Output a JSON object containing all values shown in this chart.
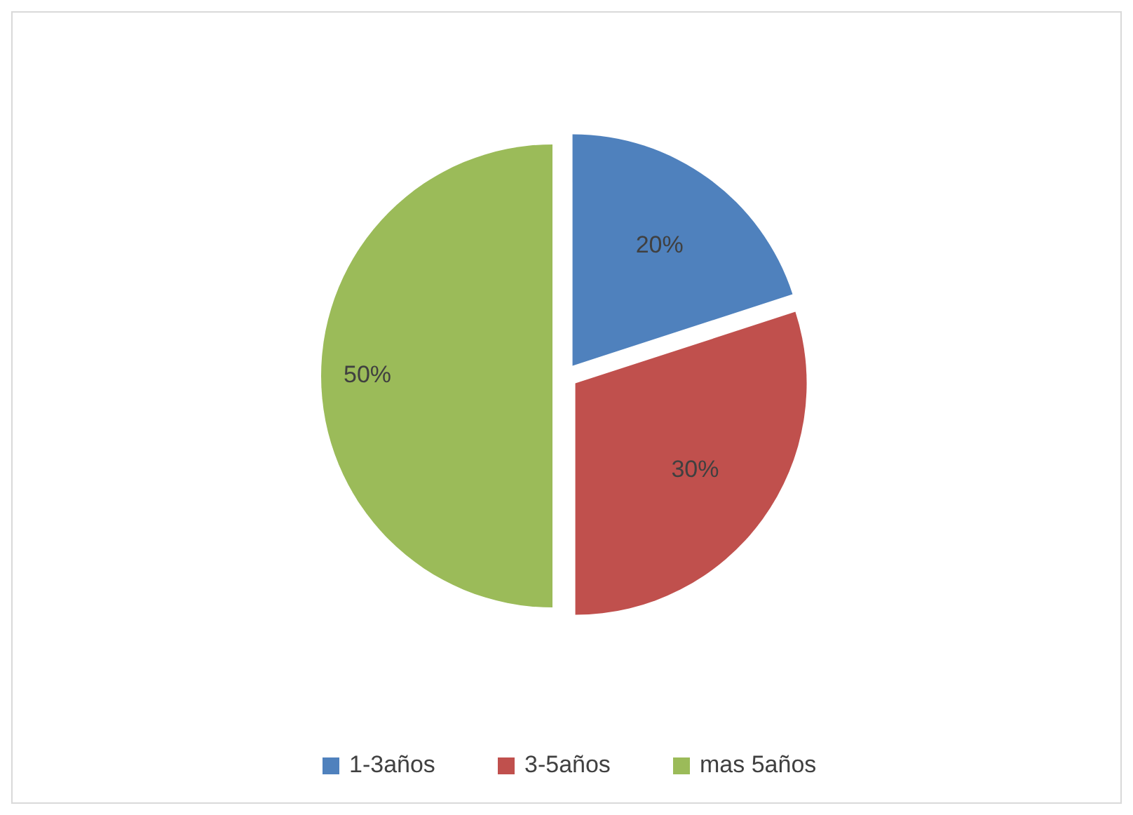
{
  "chart_data": {
    "type": "pie",
    "categories": [
      "1-3años",
      "3-5años",
      "mas 5años"
    ],
    "values": [
      20,
      30,
      50
    ],
    "colors": [
      "#4f81bd",
      "#c0504d",
      "#9bbb59"
    ],
    "value_labels": [
      "20%",
      "30%",
      "50%"
    ],
    "legend": "bottom"
  }
}
